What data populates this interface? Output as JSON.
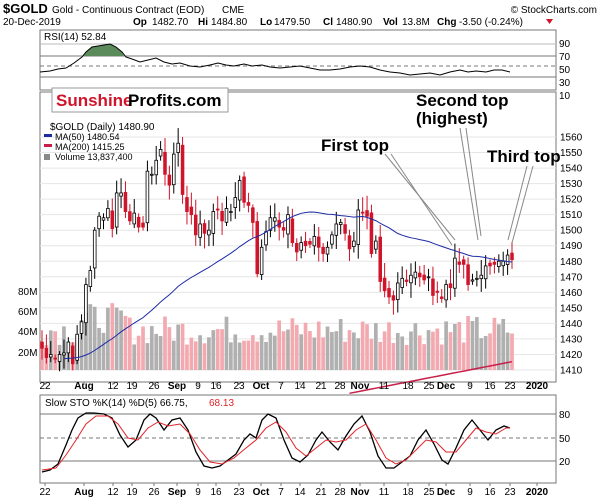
{
  "header": {
    "symbol": "$GOLD",
    "description": "Gold - Continuous Contract (EOD)",
    "exchange": "CME",
    "source": "© StockCharts.com",
    "date": "20-Dec-2019",
    "op_label": "Op",
    "op": "1482.70",
    "hi_label": "Hi",
    "hi": "1484.80",
    "lo_label": "Lo",
    "lo": "1479.50",
    "cl_label": "Cl",
    "cl": "1480.90",
    "vol_label": "Vol",
    "vol": "13.8M",
    "chg_label": "Chg",
    "chg": "-3.50 (-0.24%)"
  },
  "logo": {
    "part1": "Sunshine",
    "part2": "Profits.com"
  },
  "rsi": {
    "label": "RSI(14) 52.84",
    "ticks": [
      "90",
      "70",
      "50",
      "30",
      "10"
    ]
  },
  "price_legend": {
    "main": "$GOLD (Daily) 1480.90",
    "ma50": "MA(50) 1480.54",
    "ma200": "MA(200) 1415.25",
    "volume": "Volume 13,837,400"
  },
  "annotations": {
    "first_top": "First top",
    "second_top_line1": "Second top",
    "second_top_line2": "(highest)",
    "third_top": "Third top"
  },
  "price_axis": [
    "1560",
    "1550",
    "1540",
    "1530",
    "1520",
    "1510",
    "1500",
    "1490",
    "1480",
    "1470",
    "1460",
    "1450",
    "1440",
    "1430",
    "1420",
    "1410"
  ],
  "volume_axis": [
    "80M",
    "60M",
    "40M",
    "20M"
  ],
  "x_axis": [
    "22",
    "Aug",
    "12",
    "19",
    "26",
    "Sep",
    "9",
    "16",
    "23",
    "Oct",
    "7",
    "14",
    "21",
    "28",
    "Nov",
    "11",
    "18",
    "25",
    "Dec",
    "9",
    "16",
    "23",
    "2020"
  ],
  "sto": {
    "label": "Slow STO %K(14) %D(5) 66.75,",
    "d_value": "68.13",
    "ticks": [
      "80",
      "50",
      "20"
    ]
  },
  "colors": {
    "up": "#000000",
    "down": "#d0142a",
    "ma50": "#1c2aa6",
    "ma200": "#c81e4a",
    "vol_up": "#b0b0b0",
    "vol_down": "#f2aab0",
    "rsi_fill": "#5b8a5b",
    "sto_d": "#e0242a"
  },
  "chart_data": {
    "type": "candlestick",
    "series_name": "$GOLD (Daily)",
    "ylim": [
      1405,
      1565
    ],
    "dates": [
      "Jul-22",
      "Jul-23",
      "Jul-24",
      "Jul-25",
      "Jul-26",
      "Jul-29",
      "Jul-30",
      "Jul-31",
      "Aug-1",
      "Aug-2",
      "Aug-5",
      "Aug-6",
      "Aug-7",
      "Aug-8",
      "Aug-9",
      "Aug-12",
      "Aug-13",
      "Aug-14",
      "Aug-15",
      "Aug-16",
      "Aug-19",
      "Aug-20",
      "Aug-21",
      "Aug-22",
      "Aug-23",
      "Aug-26",
      "Aug-27",
      "Aug-28",
      "Aug-29",
      "Aug-30",
      "Sep-3",
      "Sep-4",
      "Sep-5",
      "Sep-6",
      "Sep-9",
      "Sep-10",
      "Sep-11",
      "Sep-12",
      "Sep-13",
      "Sep-16",
      "Sep-17",
      "Sep-18",
      "Sep-19",
      "Sep-20",
      "Sep-23",
      "Sep-24",
      "Sep-25",
      "Sep-26",
      "Sep-27",
      "Sep-30",
      "Oct-1",
      "Oct-2",
      "Oct-3",
      "Oct-4",
      "Oct-7",
      "Oct-8",
      "Oct-9",
      "Oct-10",
      "Oct-11",
      "Oct-14",
      "Oct-15",
      "Oct-16",
      "Oct-17",
      "Oct-18",
      "Oct-21",
      "Oct-22",
      "Oct-23",
      "Oct-24",
      "Oct-25",
      "Oct-28",
      "Oct-29",
      "Oct-30",
      "Oct-31",
      "Nov-1",
      "Nov-4",
      "Nov-5",
      "Nov-6",
      "Nov-7",
      "Nov-8",
      "Nov-11",
      "Nov-12",
      "Nov-13",
      "Nov-14",
      "Nov-15",
      "Nov-18",
      "Nov-19",
      "Nov-20",
      "Nov-21",
      "Nov-22",
      "Nov-25",
      "Nov-26",
      "Nov-27",
      "Nov-29",
      "Dec-2",
      "Dec-3",
      "Dec-4",
      "Dec-5",
      "Dec-6",
      "Dec-9",
      "Dec-10",
      "Dec-11",
      "Dec-12",
      "Dec-13",
      "Dec-16",
      "Dec-17",
      "Dec-18",
      "Dec-19",
      "Dec-20"
    ],
    "close": [
      1424,
      1418,
      1420,
      1417,
      1420,
      1421,
      1428,
      1414,
      1433,
      1441,
      1465,
      1474,
      1500,
      1509,
      1508,
      1514,
      1501,
      1524,
      1524,
      1512,
      1506,
      1511,
      1502,
      1502,
      1538,
      1536,
      1545,
      1552,
      1536,
      1529,
      1549,
      1556,
      1523,
      1512,
      1510,
      1497,
      1504,
      1498,
      1500,
      1512,
      1513,
      1506,
      1514,
      1512,
      1521,
      1532,
      1518,
      1516,
      1505,
      1472,
      1489,
      1499,
      1508,
      1508,
      1502,
      1500,
      1510,
      1492,
      1486,
      1492,
      1490,
      1491,
      1496,
      1489,
      1485,
      1489,
      1497,
      1504,
      1505,
      1498,
      1488,
      1493,
      1513,
      1511,
      1509,
      1485,
      1493,
      1467,
      1461,
      1457,
      1455,
      1466,
      1469,
      1467,
      1471,
      1473,
      1470,
      1468,
      1470,
      1458,
      1460,
      1456,
      1465,
      1463,
      1482,
      1478,
      1478,
      1465,
      1468,
      1469,
      1471,
      1477,
      1477,
      1478,
      1480,
      1480,
      1484,
      1481
    ]
  }
}
